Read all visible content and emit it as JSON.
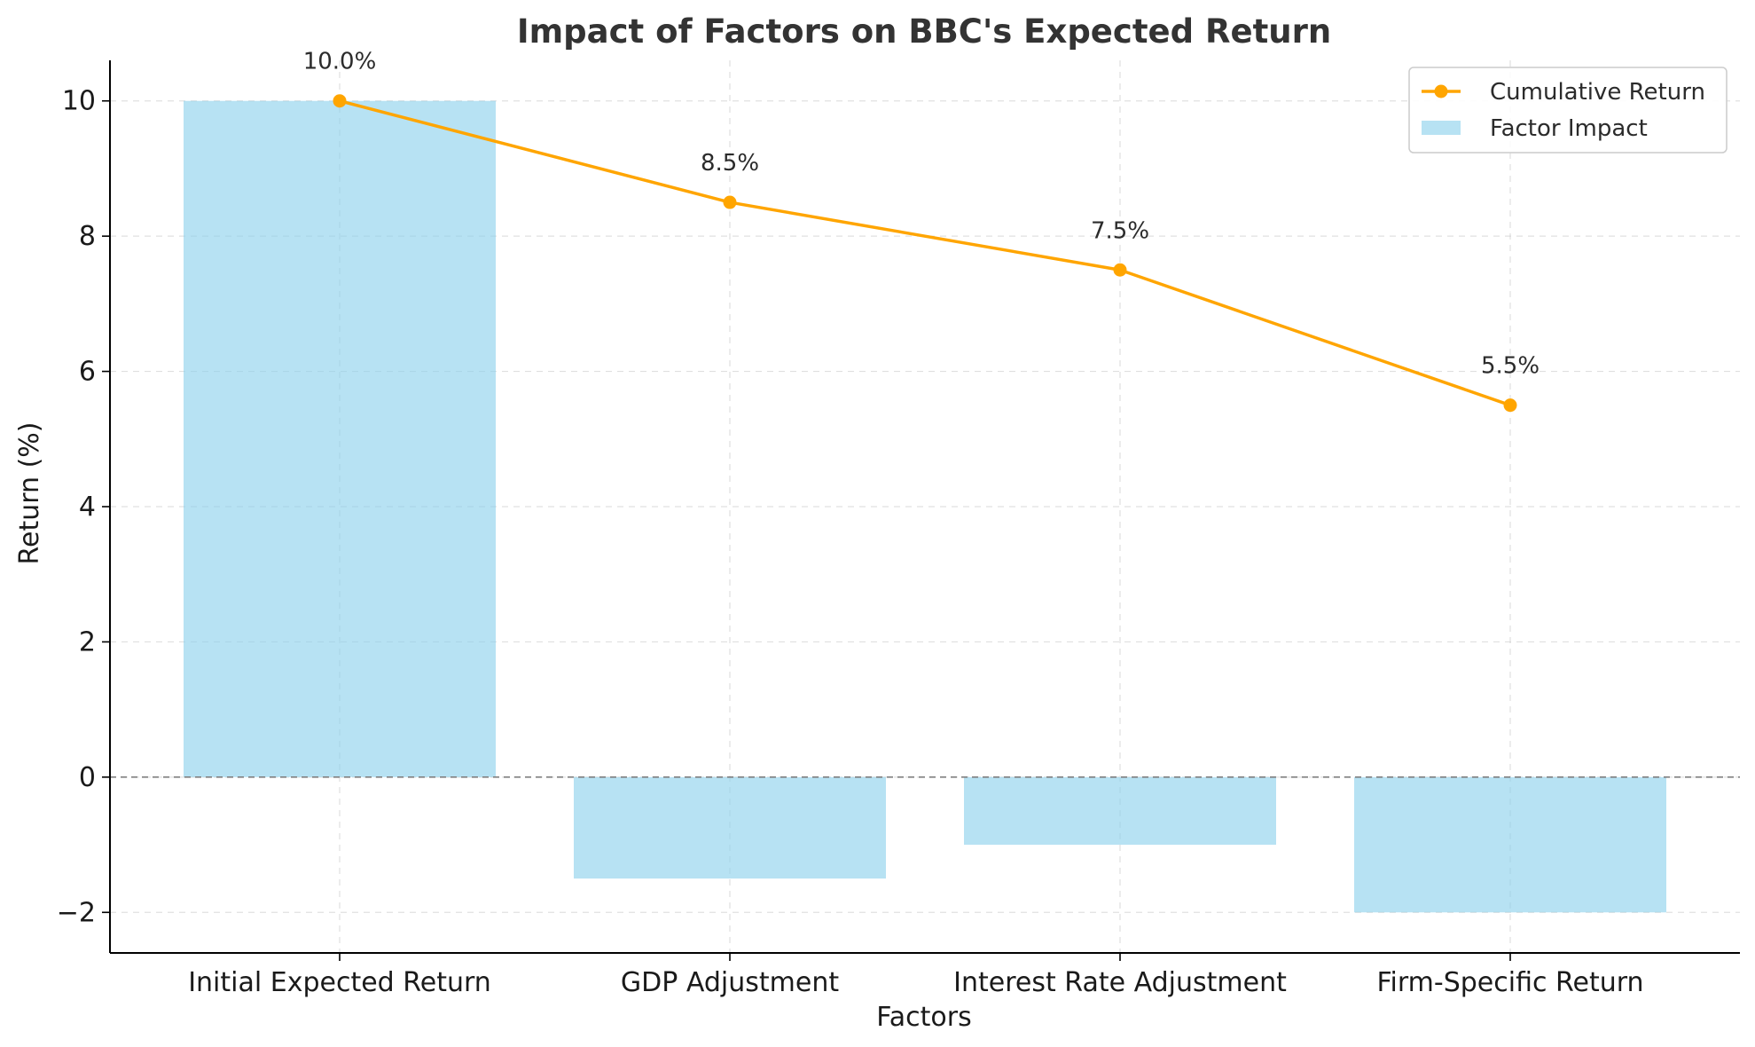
{
  "chart_data": {
    "type": "bar",
    "title": "Impact of Factors on BBC's Expected Return",
    "xlabel": "Factors",
    "ylabel": "Return (%)",
    "categories": [
      "Initial Expected Return",
      "GDP Adjustment",
      "Interest Rate Adjustment",
      "Firm-Specific Return"
    ],
    "ylim": [
      -2.6,
      10.6
    ],
    "yticks": [
      -2,
      0,
      2,
      4,
      6,
      8,
      10
    ],
    "ytick_labels": [
      "−2",
      "0",
      "2",
      "4",
      "6",
      "8",
      "10"
    ],
    "grid": true,
    "zero_line": true,
    "legend_position": "top-right",
    "series": [
      {
        "name": "Factor Impact",
        "type": "bar",
        "color": "#87ceeb",
        "values": [
          10.0,
          -1.5,
          -1.0,
          -2.0
        ]
      },
      {
        "name": "Cumulative Return",
        "type": "line",
        "color": "#ffa500",
        "values": [
          10.0,
          8.5,
          7.5,
          5.5
        ],
        "data_labels": [
          "10.0%",
          "8.5%",
          "7.5%",
          "5.5%"
        ]
      }
    ],
    "legend": [
      "Cumulative Return",
      "Factor Impact"
    ]
  }
}
